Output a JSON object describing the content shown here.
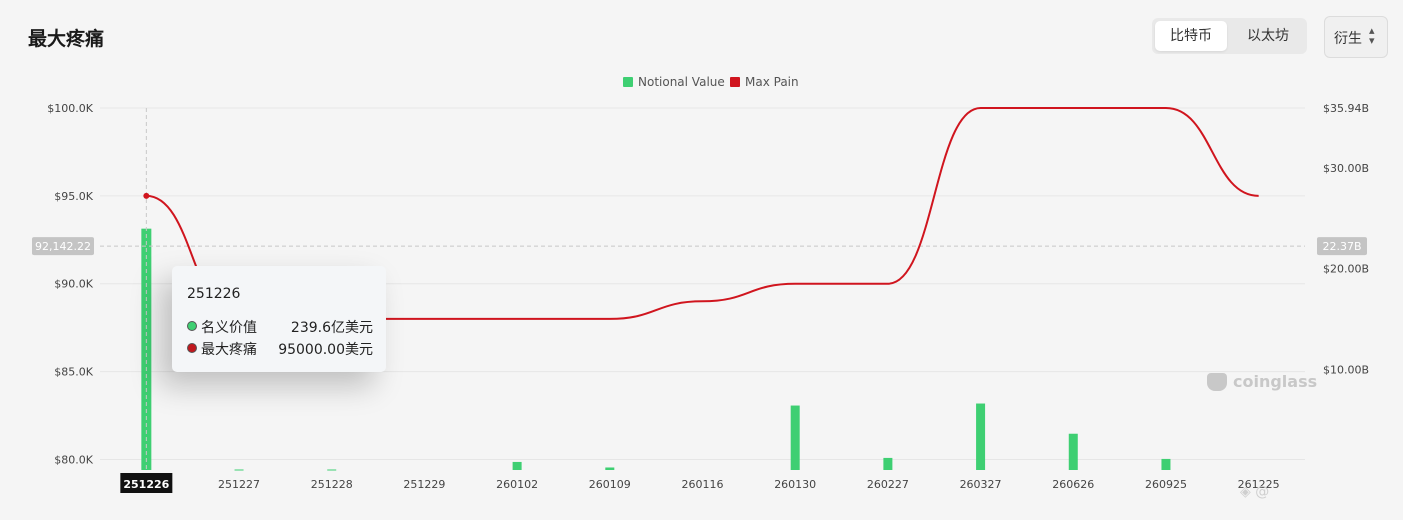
{
  "title": "最大疼痛",
  "coin_toggle": {
    "options": [
      "比特币",
      "以太坊"
    ],
    "active": "比特币"
  },
  "type_select": {
    "label": "衍生",
    "icon": "chevron-updown-icon"
  },
  "chart_data": {
    "type": "bar+line",
    "categories": [
      "251226",
      "251227",
      "251228",
      "251229",
      "260102",
      "260109",
      "260116",
      "260130",
      "260227",
      "260327",
      "260626",
      "260925",
      "261225"
    ],
    "series": [
      {
        "name": "Notional Value",
        "type": "bar",
        "axis": "right",
        "color": "#3ecf72",
        "values": [
          23.96,
          0.05,
          0.05,
          0.0,
          0.8,
          0.25,
          0.0,
          6.4,
          1.2,
          6.6,
          3.6,
          1.1,
          0.0
        ]
      },
      {
        "name": "Max Pain",
        "type": "line",
        "axis": "left",
        "color": "#d0151e",
        "values": [
          95000,
          88000,
          88000,
          88000,
          88000,
          88000,
          89000,
          90000,
          90000,
          100000,
          100000,
          100000,
          95000
        ]
      }
    ],
    "left_axis": {
      "ticks": [
        "$80.0K",
        "$85.0K",
        "$90.0K",
        "$95.0K",
        "$100.0K"
      ],
      "tick_values": [
        80000,
        85000,
        90000,
        95000,
        100000
      ],
      "range": [
        79400,
        100000
      ]
    },
    "right_axis": {
      "ticks": [
        "$10.00B",
        "$20.00B",
        "$30.00B",
        "$35.94B"
      ],
      "tick_values": [
        10,
        20,
        30,
        35.94
      ],
      "unit": "B",
      "range": [
        0,
        35.94
      ]
    },
    "crosshair": {
      "left_label": "92,142.22",
      "right_label": "22.37B",
      "left_value": 92142.22,
      "category": "251226"
    },
    "legend_placement": "top-center",
    "grid": true
  },
  "tooltip": {
    "title": "251226",
    "rows": [
      {
        "name": "名义价值",
        "value": "239.6亿美元",
        "color": "#3ecf72"
      },
      {
        "name": "最大疼痛",
        "value": "95000.00美元",
        "color": "#c0181e"
      }
    ]
  },
  "watermark": "coinglass"
}
